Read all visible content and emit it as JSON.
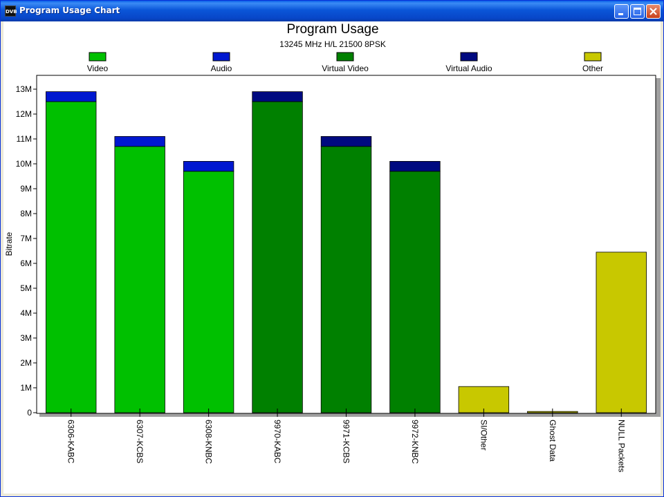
{
  "window": {
    "title": "Program Usage Chart",
    "icon_label": "DVB",
    "icon": "dvb-app-icon",
    "buttons": [
      "minimize-icon",
      "maximize-icon",
      "close-icon"
    ]
  },
  "chart_data": {
    "type": "bar",
    "stacked": true,
    "title": "Program Usage",
    "subtitle": "13245 MHz H/L 21500 8PSK",
    "ylabel": "Bitrate",
    "xlabel": "",
    "ylim": [
      0,
      13
    ],
    "yticks": [
      "0",
      "1M",
      "2M",
      "3M",
      "4M",
      "5M",
      "6M",
      "7M",
      "8M",
      "9M",
      "10M",
      "11M",
      "12M",
      "13M"
    ],
    "grid": false,
    "legend_position": "top",
    "categories": [
      "6306-KABC",
      "6307-KCBS",
      "6308-KNBC",
      "9970-KABC",
      "9971-KCBS",
      "9972-KNBC",
      "SI/Other",
      "Ghost Data",
      "NULL Packets"
    ],
    "series": [
      {
        "name": "Video",
        "color": "#00c000",
        "values": [
          12.5,
          10.7,
          9.7,
          0,
          0,
          0,
          0,
          0,
          0
        ]
      },
      {
        "name": "Audio",
        "color": "#0018d0",
        "values": [
          0.4,
          0.4,
          0.4,
          0,
          0,
          0,
          0,
          0,
          0
        ]
      },
      {
        "name": "Virtual Video",
        "color": "#008000",
        "values": [
          0,
          0,
          0,
          12.5,
          10.7,
          9.7,
          0,
          0,
          0
        ]
      },
      {
        "name": "Virtual Audio",
        "color": "#000a80",
        "values": [
          0,
          0,
          0,
          0.4,
          0.4,
          0.4,
          0,
          0,
          0
        ]
      },
      {
        "name": "Other",
        "color": "#c8c800",
        "values": [
          0,
          0,
          0,
          0,
          0,
          0,
          1.05,
          0.05,
          6.45
        ]
      }
    ]
  }
}
